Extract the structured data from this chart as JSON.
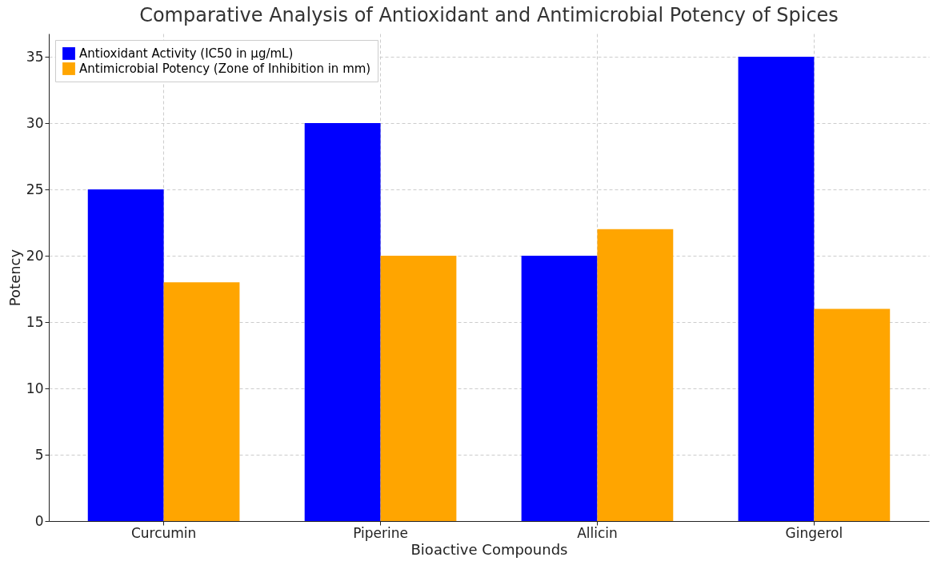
{
  "chart_data": {
    "type": "bar",
    "title": "Comparative Analysis of Antioxidant and Antimicrobial Potency of Spices",
    "xlabel": "Bioactive Compounds",
    "ylabel": "Potency",
    "categories": [
      "Curcumin",
      "Piperine",
      "Allicin",
      "Gingerol"
    ],
    "series": [
      {
        "name": "Antioxidant Activity (IC50 in µg/mL)",
        "color": "#0000ff",
        "values": [
          25,
          30,
          20,
          35
        ]
      },
      {
        "name": "Antimicrobial Potency (Zone of Inhibition in mm)",
        "color": "#ffa500",
        "values": [
          18,
          20,
          22,
          16
        ]
      }
    ],
    "ylim": [
      0,
      36.75
    ],
    "yticks": [
      0,
      5,
      10,
      15,
      20,
      25,
      30,
      35
    ],
    "grid": true,
    "legend": "top left"
  }
}
